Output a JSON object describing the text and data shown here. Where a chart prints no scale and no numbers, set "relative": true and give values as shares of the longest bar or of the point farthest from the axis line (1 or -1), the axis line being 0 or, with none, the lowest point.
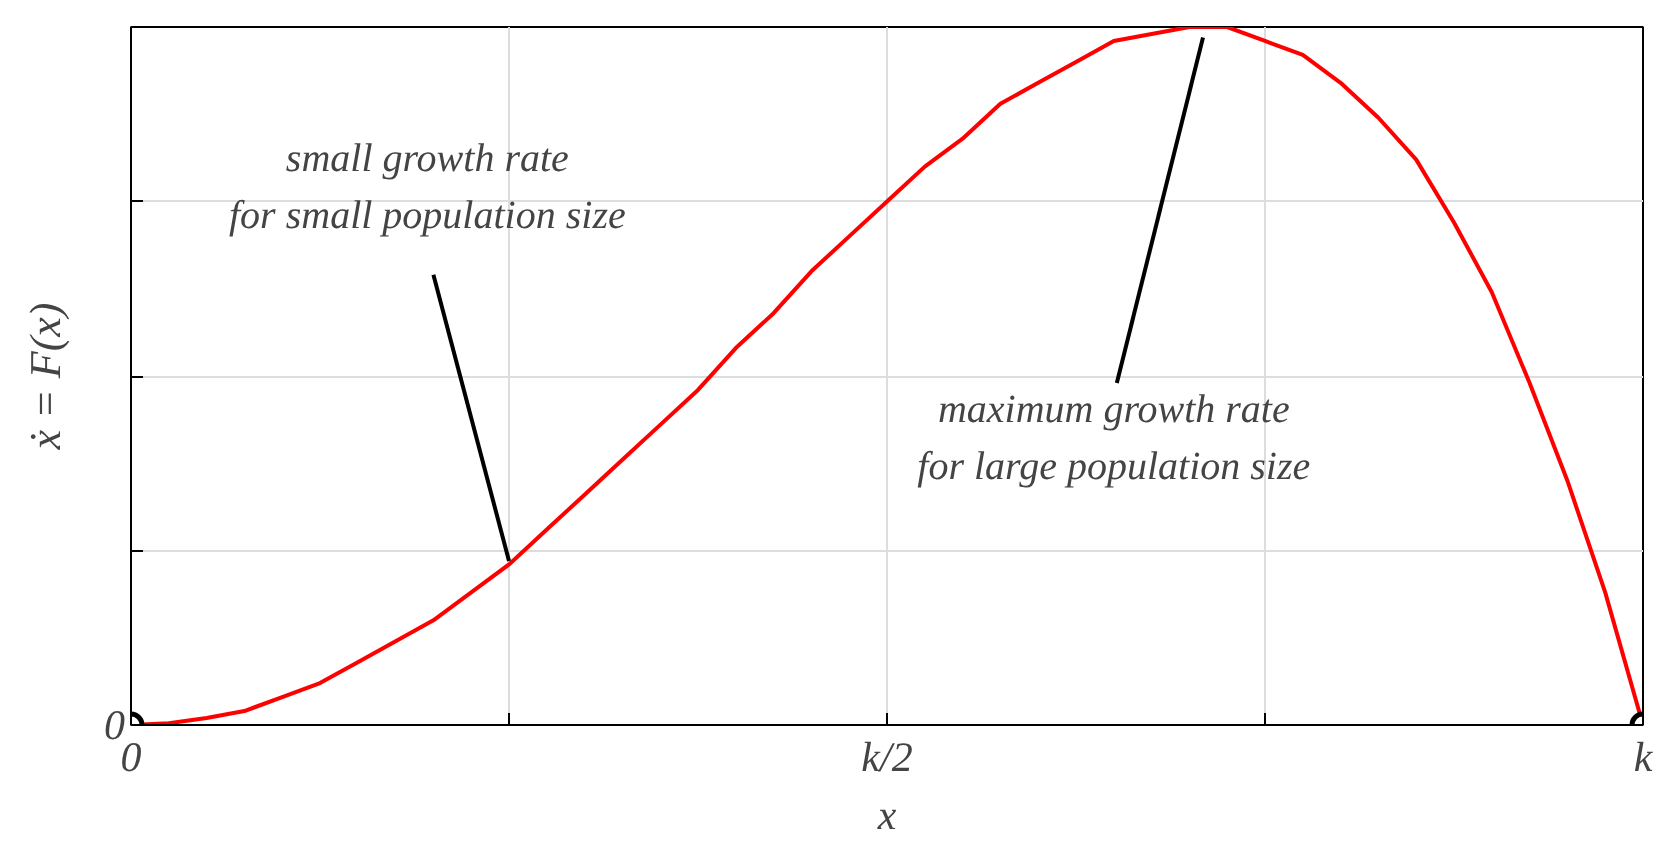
{
  "chart_data": {
    "type": "line",
    "relative": true,
    "xlabel": "x",
    "ylabel": "ẋ = F(x)",
    "categories": [
      "0",
      null,
      null,
      null,
      null,
      null,
      null,
      null,
      null,
      null,
      null,
      null,
      null,
      null,
      null,
      null,
      null,
      null,
      null,
      null,
      "k/2",
      null,
      null,
      null,
      null,
      null,
      null,
      null,
      null,
      null,
      null,
      null,
      null,
      null,
      null,
      null,
      null,
      null,
      null,
      null,
      "k"
    ],
    "grid": true,
    "series": [
      {
        "color": "#ff0000",
        "values": [
          0,
          0.0025,
          0.01,
          0.02,
          0.04,
          0.06,
          0.09,
          0.12,
          0.15,
          0.19,
          0.23,
          0.28,
          0.33,
          0.38,
          0.43,
          0.48,
          0.54,
          0.59,
          0.65,
          0.7,
          0.75,
          0.8,
          0.84,
          0.89,
          0.92,
          0.95,
          0.98,
          0.99,
          1.0,
          1.0,
          0.98,
          0.96,
          0.92,
          0.87,
          0.81,
          0.72,
          0.62,
          0.49,
          0.35,
          0.19,
          0
        ]
      },
      {
        "color": "#000000",
        "type": "scatter",
        "marker": "circle",
        "values": [
          0,
          null,
          null,
          null,
          null,
          null,
          null,
          null,
          null,
          null,
          null,
          null,
          null,
          null,
          null,
          null,
          null,
          null,
          null,
          null,
          null,
          null,
          null,
          null,
          null,
          null,
          null,
          null,
          null,
          null,
          null,
          null,
          null,
          null,
          null,
          null,
          null,
          null,
          null,
          null,
          0
        ]
      }
    ],
    "annotations": [
      "0",
      "small growth rate\nfor small population size",
      "maximum growth rate\nfor large population size"
    ]
  }
}
